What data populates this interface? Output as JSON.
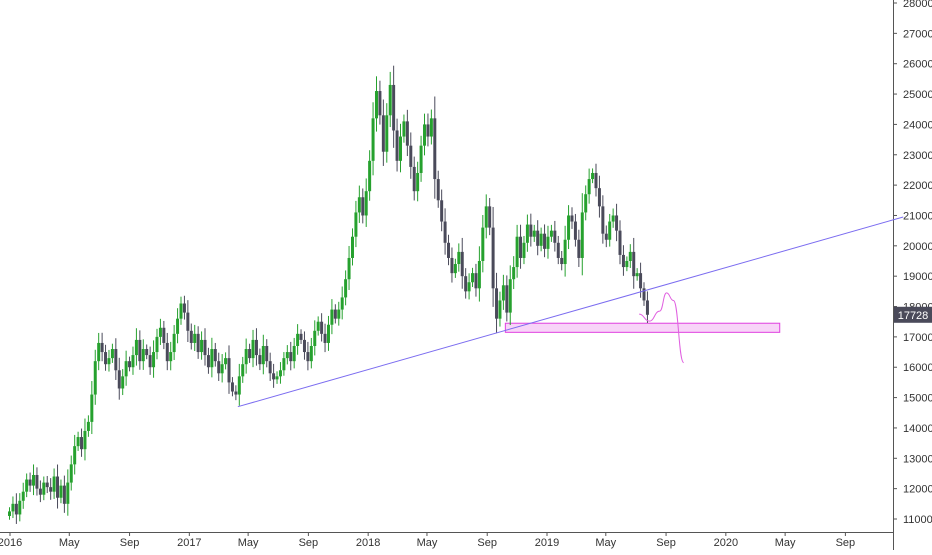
{
  "chart_data": {
    "type": "candlestick",
    "y_axis": {
      "position": "right",
      "ylim": [
        10650,
        28000
      ],
      "ticks": [
        11000,
        12000,
        13000,
        14000,
        15000,
        16000,
        17000,
        18000,
        19000,
        20000,
        21000,
        22000,
        23000,
        24000,
        25000,
        26000,
        27000,
        28000
      ],
      "tick_labels": [
        "11000",
        "12000",
        "13000",
        "14000",
        "15000",
        "16000",
        "17000",
        "18000",
        "19000",
        "20000",
        "21000",
        "22000",
        "23000",
        "24000",
        "25000",
        "26000",
        "27000",
        "28000"
      ]
    },
    "x_axis": {
      "ticks": [
        "2016-01",
        "2016-05",
        "2016-09",
        "2017-01",
        "2017-05",
        "2017-09",
        "2018-01",
        "2018-05",
        "2018-09",
        "2019-01",
        "2019-05",
        "2019-09",
        "2020-01",
        "2020-05",
        "2020-09"
      ],
      "tick_labels": [
        "2016",
        "May",
        "Sep",
        "2017",
        "May",
        "Sep",
        "2018",
        "May",
        "Sep",
        "2019",
        "May",
        "Sep",
        "2020",
        "May",
        "Sep"
      ]
    },
    "last_price": {
      "value": 17728,
      "label": "17728",
      "color": "#4a4a5a"
    },
    "colors": {
      "up": "#26a12e",
      "down": "#4a4a5a",
      "trendline": "#7b6cf0",
      "zone": "#e040e0",
      "zone_fill": "#f5c6f5",
      "projection": "#e060e0"
    },
    "closes": [
      11250,
      11500,
      11150,
      11600,
      11900,
      12300,
      12100,
      12450,
      12000,
      11800,
      12200,
      12050,
      11900,
      12400,
      11700,
      12100,
      11500,
      12200,
      12800,
      13400,
      13700,
      13300,
      13900,
      14200,
      15100,
      16200,
      16800,
      16500,
      16100,
      16300,
      16600,
      15900,
      15300,
      15700,
      16200,
      16000,
      16400,
      16900,
      16200,
      16600,
      16400,
      16000,
      16500,
      17000,
      17300,
      16800,
      16200,
      16500,
      17100,
      17600,
      18100,
      17800,
      17200,
      16800,
      17100,
      16500,
      16900,
      16400,
      16000,
      16600,
      16200,
      15800,
      16100,
      16300,
      15500,
      15200,
      15100,
      15700,
      16100,
      16600,
      16300,
      16900,
      16400,
      16100,
      16700,
      16200,
      15800,
      15600,
      15700,
      15900,
      16300,
      16500,
      16200,
      16700,
      17100,
      16900,
      16500,
      16200,
      16700,
      17200,
      17500,
      17100,
      16800,
      17400,
      17900,
      17600,
      17900,
      18300,
      18900,
      19600,
      20300,
      21100,
      21600,
      21000,
      21800,
      22800,
      24200,
      25100,
      24300,
      23100,
      24300,
      25300,
      23800,
      22800,
      23600,
      24100,
      23300,
      22600,
      21800,
      22400,
      23300,
      24000,
      23600,
      24200,
      22200,
      21500,
      20800,
      20100,
      19600,
      19100,
      19400,
      19800,
      19000,
      18500,
      18800,
      19100,
      18600,
      19500,
      20600,
      21300,
      20600,
      18600,
      17600,
      18200,
      18700,
      17800,
      18900,
      19300,
      20300,
      19600,
      20100,
      20700,
      20300,
      20500,
      20000,
      20400,
      19900,
      20300,
      20500,
      20100,
      19600,
      19400,
      20200,
      21000,
      20800,
      20200,
      19600,
      21100,
      21700,
      22200,
      22400,
      21900,
      21300,
      20400,
      20200,
      20800,
      21000,
      20500,
      19700,
      19300,
      19500,
      19800,
      19000,
      19100,
      18600,
      18200,
      17728
    ],
    "annotations": [
      {
        "type": "trendline",
        "from": [
          "2017-04-10",
          14700
        ],
        "to": [
          "2020-12-28",
          20950
        ]
      },
      {
        "type": "rectangle",
        "from": [
          "2018-10-08",
          17450
        ],
        "to": [
          "2020-04-20",
          17150
        ]
      },
      {
        "type": "projection-path",
        "points": [
          [
            "2019-07-08",
            17750
          ],
          [
            "2019-07-29",
            17520
          ],
          [
            "2019-08-19",
            17850
          ],
          [
            "2019-09-02",
            18450
          ],
          [
            "2019-09-16",
            18200
          ],
          [
            "2019-10-07",
            16150
          ]
        ]
      }
    ]
  }
}
